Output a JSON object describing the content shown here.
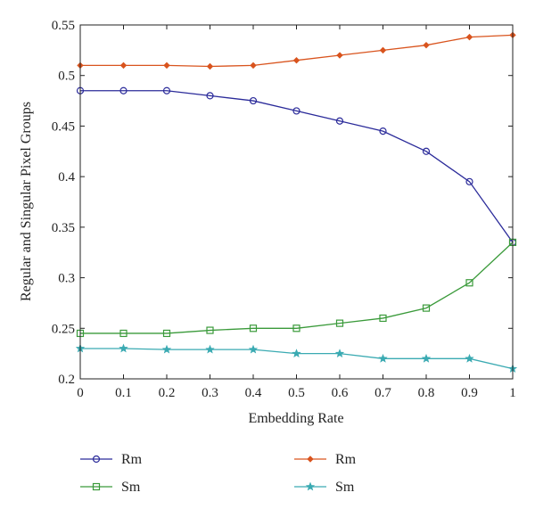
{
  "chart_data": {
    "type": "line",
    "xlabel": "Embedding Rate",
    "ylabel": "Regular and Singular Pixel Groups",
    "xlim": [
      0,
      1
    ],
    "ylim": [
      0.2,
      0.55
    ],
    "xticks": [
      "0",
      "0.1",
      "0.2",
      "0.3",
      "0.4",
      "0.5",
      "0.6",
      "0.7",
      "0.8",
      "0.9",
      "1"
    ],
    "yticks": [
      "0.2",
      "0.25",
      "0.3",
      "0.35",
      "0.4",
      "0.45",
      "0.5",
      "0.55"
    ],
    "x": [
      0,
      0.1,
      0.2,
      0.3,
      0.4,
      0.5,
      0.6,
      0.7,
      0.8,
      0.9,
      1
    ],
    "grid": false,
    "legend_position": "bottom",
    "series": [
      {
        "name": "Rm",
        "color": "#2b2b9a",
        "marker": "circle",
        "values": [
          0.485,
          0.485,
          0.485,
          0.48,
          0.475,
          0.465,
          0.455,
          0.445,
          0.425,
          0.395,
          0.335
        ]
      },
      {
        "name": "Sm",
        "color": "#3a9a3a",
        "marker": "square",
        "values": [
          0.245,
          0.245,
          0.245,
          0.248,
          0.25,
          0.25,
          0.255,
          0.26,
          0.27,
          0.295,
          0.335
        ]
      },
      {
        "name": "Rm",
        "color": "#d9541e",
        "marker": "diamond",
        "values": [
          0.51,
          0.51,
          0.51,
          0.509,
          0.51,
          0.515,
          0.52,
          0.525,
          0.53,
          0.538,
          0.54
        ]
      },
      {
        "name": "Sm",
        "color": "#3aaab2",
        "marker": "star",
        "values": [
          0.23,
          0.23,
          0.229,
          0.229,
          0.229,
          0.225,
          0.225,
          0.22,
          0.22,
          0.22,
          0.21
        ]
      }
    ]
  }
}
